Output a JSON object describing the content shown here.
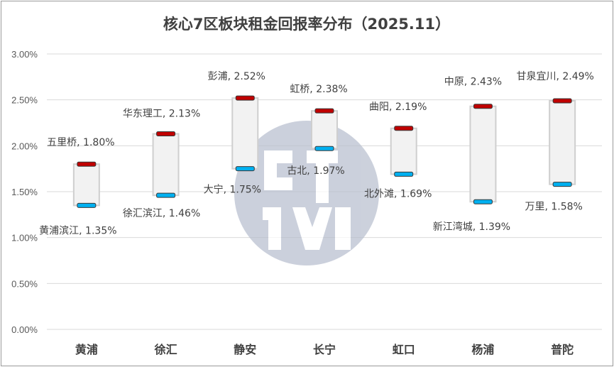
{
  "chart_data": {
    "type": "range-bar",
    "title": "核心7区板块租金回报率分布（2025.11）",
    "ylim": [
      0,
      0.03
    ],
    "yticks": [
      "0.00%",
      "0.50%",
      "1.00%",
      "1.50%",
      "2.00%",
      "2.50%",
      "3.00%"
    ],
    "ytick_values": [
      0,
      0.005,
      0.01,
      0.015,
      0.02,
      0.025,
      0.03
    ],
    "grid": true,
    "categories": [
      "黄浦",
      "徐汇",
      "静安",
      "长宁",
      "虹口",
      "杨浦",
      "普陀"
    ],
    "series": [
      {
        "name": "",
        "role": "high",
        "color": "#c00000",
        "values": [
          0.018,
          0.0213,
          0.0252,
          0.0238,
          0.0219,
          0.0243,
          0.0249
        ],
        "labels": [
          "五里桥, 1.80%",
          "华东理工, 2.13%",
          "彭浦, 2.52%",
          "虹桥, 2.38%",
          "曲阳, 2.19%",
          "中原, 2.43%",
          "甘泉宜川, 2.49%"
        ]
      },
      {
        "name": "",
        "role": "low",
        "color": "#00b0f0",
        "values": [
          0.0135,
          0.0146,
          0.0175,
          0.0197,
          0.0169,
          0.0139,
          0.0158
        ],
        "labels": [
          "黄浦滨江, 1.35%",
          "徐汇滨江, 1.46%",
          "大宁, 1.75%",
          "古北, 1.97%",
          "北外滩, 1.69%",
          "新江湾城, 1.39%",
          "万里, 1.58%"
        ]
      }
    ]
  }
}
